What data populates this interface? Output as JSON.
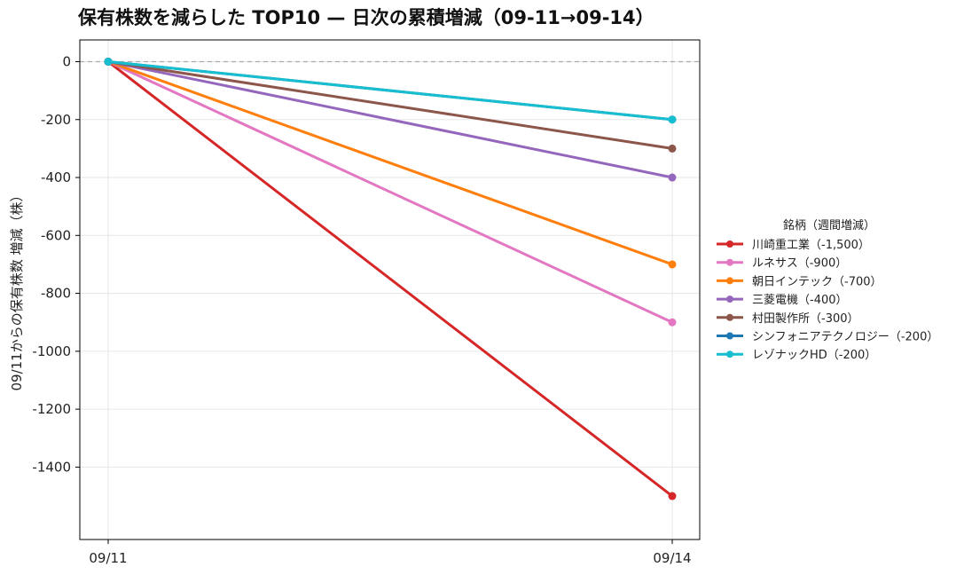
{
  "chart_data": {
    "type": "line",
    "title": "保有株数を減らした TOP10 — 日次の累積増減（09-11→09-14）",
    "xlabel": "",
    "ylabel": "09/11からの保有株数 増減（株）",
    "categories": [
      "09/11",
      "09/14"
    ],
    "ylim": [
      -1650,
      75
    ],
    "yticks": [
      0,
      -200,
      -400,
      -600,
      -800,
      -1000,
      -1200,
      -1400
    ],
    "grid": true,
    "zero_line": true,
    "legend": {
      "title": "銘柄（週間増減）",
      "placement": "right-outside"
    },
    "series": [
      {
        "name": "川崎重工業（-1,500）",
        "color": "#d62728",
        "values": [
          0,
          -1500
        ]
      },
      {
        "name": "ルネサス（-900）",
        "color": "#e377c2",
        "values": [
          0,
          -900
        ]
      },
      {
        "name": "朝日インテック（-700）",
        "color": "#ff7f0e",
        "values": [
          0,
          -700
        ]
      },
      {
        "name": "三菱電機（-400）",
        "color": "#9467bd",
        "values": [
          0,
          -400
        ]
      },
      {
        "name": "村田製作所（-300）",
        "color": "#8c564b",
        "values": [
          0,
          -300
        ]
      },
      {
        "name": "シンフォニアテクノロジー（-200）",
        "color": "#1f77b4",
        "values": [
          0,
          -200
        ]
      },
      {
        "name": "レゾナックHD（-200）",
        "color": "#17becf",
        "values": [
          0,
          -200
        ]
      }
    ]
  }
}
